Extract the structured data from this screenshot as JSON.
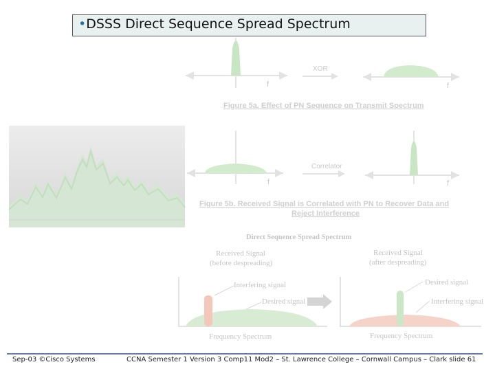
{
  "slide": {
    "bullet": "•",
    "title_prefix": "DSSS",
    "title_rest": " Direct Sequence Spread Spectrum"
  },
  "figure_top": {
    "xor_label": "XOR",
    "f_label_left": "f",
    "f_label_right": "f",
    "caption": "Figure 5a. Effect of PN Sequence on Transmit Spectrum"
  },
  "figure_middle": {
    "correlator_label": "Correlator",
    "f_label_left": "f",
    "f_label_right": "f",
    "caption_line1": "Figure 5b. Received Signal is Correlated with PN to Recover Data and",
    "caption_line2": "Reject Interference"
  },
  "figure_bottom": {
    "title": "Direct Sequence Spread Spectrum",
    "left_heading_line1": "Received Signal",
    "left_heading_line2": "(before despreading)",
    "right_heading_line1": "Received Signal",
    "right_heading_line2": "(after despreading)",
    "interfering_left": "Interfering signal",
    "desired_left": "Desired signal",
    "desired_right": "Desired signal",
    "interfering_right": "Interfering signal",
    "xaxis_left": "Frequency Spectrum",
    "xaxis_right": "Frequency Spectrum"
  },
  "colors": {
    "accent_green": "#b9dcb3",
    "accent_red": "#f2b3a3",
    "bullet_blue": "#2d6f9a",
    "footer_rule": "#6a7aa8"
  },
  "footer": {
    "left": "Sep-03 ©Cisco Systems",
    "right": "CCNA Semester 1 Version 3 Comp11 Mod2 – St. Lawrence College – Cornwall Campus – Clark slide 61"
  }
}
